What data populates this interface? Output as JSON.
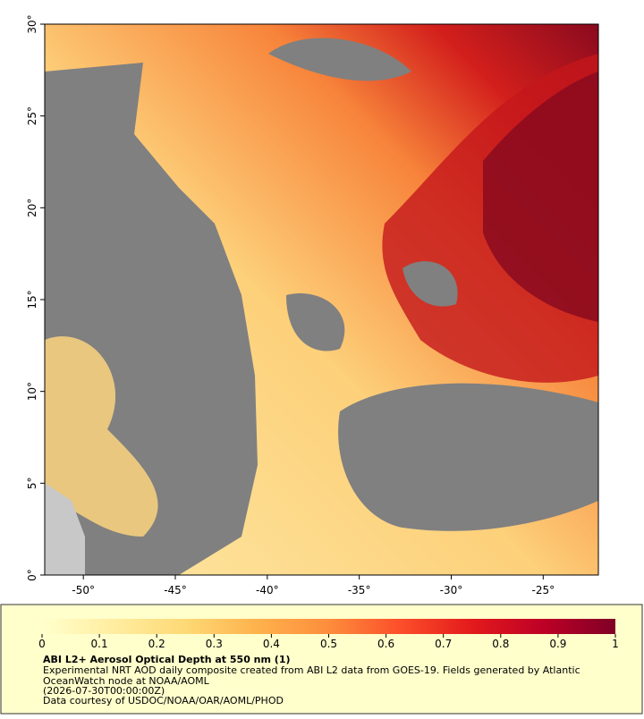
{
  "map": {
    "xlim": [
      -52.1,
      -22.0
    ],
    "ylim": [
      0,
      30
    ],
    "xticks": [
      {
        "value": -50,
        "label": "-50°"
      },
      {
        "value": -45,
        "label": "-45°"
      },
      {
        "value": -40,
        "label": "-40°"
      },
      {
        "value": -35,
        "label": "-35°"
      },
      {
        "value": -30,
        "label": "-30°"
      },
      {
        "value": -25,
        "label": "-25°"
      }
    ],
    "yticks": [
      {
        "value": 0,
        "label": "0°"
      },
      {
        "value": 5,
        "label": "5°"
      },
      {
        "value": 10,
        "label": "10°"
      },
      {
        "value": 15,
        "label": "15°"
      },
      {
        "value": 20,
        "label": "20°"
      },
      {
        "value": 25,
        "label": "25°"
      },
      {
        "value": 30,
        "label": "30°"
      }
    ]
  },
  "colorbar": {
    "lim": [
      0,
      1
    ],
    "ticks": [
      0,
      0.1,
      0.2,
      0.3,
      0.4,
      0.5,
      0.6,
      0.7,
      0.8,
      0.9,
      1
    ],
    "colors": [
      "#ffffcc",
      "#ffeda0",
      "#fed976",
      "#feb24c",
      "#fd8d3c",
      "#fc4e2a",
      "#e31a1c",
      "#bd0026",
      "#800026"
    ]
  },
  "caption": {
    "title": "ABI L2+ Aerosol Optical Depth at 550 nm (1)",
    "lines": [
      "Experimental NRT AOD daily composite created from ABI L2 data from GOES-19. Fields generated by Atlantic",
      "OceanWatch node at NOAA/AOML",
      "(2026-07-30T00:00:00Z)",
      "Data courtesy of USDOC/NOAA/OAR/AOML/PHOD"
    ]
  }
}
